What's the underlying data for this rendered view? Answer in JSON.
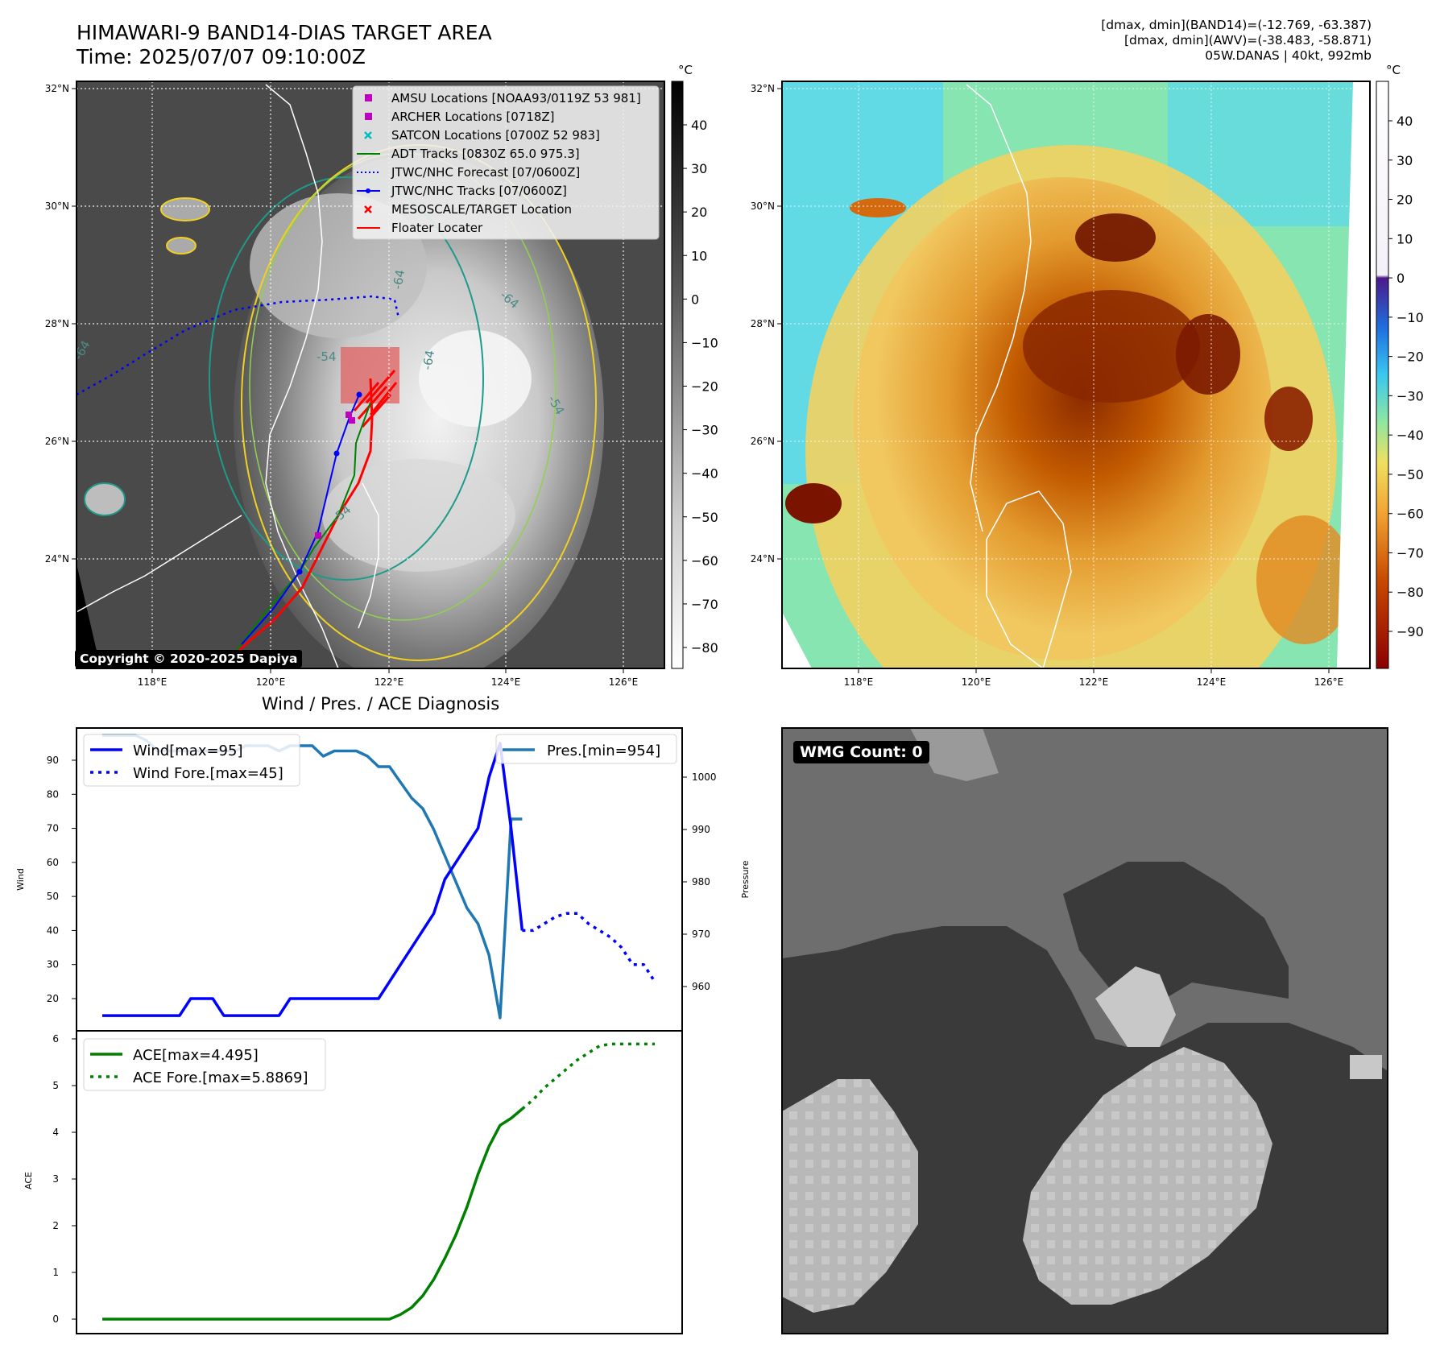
{
  "header": {
    "title_line1": "HIMAWARI-9 BAND14-DIAS TARGET AREA",
    "title_line2": "Time: 2025/07/07 09:10:00Z",
    "meta_line1": "[dmax, dmin](BAND14)=(-12.769, -63.387)",
    "meta_line2": "[dmax, dmin](AWV)=(-38.483, -58.871)",
    "meta_line3": "05W.DANAS | 40kt, 992mb"
  },
  "copyright": "Copyright © 2020-2025 Dapiya",
  "maps": {
    "lat_ticks": [
      "32°N",
      "30°N",
      "28°N",
      "26°N",
      "24°N"
    ],
    "lon_ticks": [
      "118°E",
      "120°E",
      "122°E",
      "124°E",
      "126°E"
    ],
    "contour_labels": [
      "-64",
      "-64",
      "-54",
      "-64",
      "-54",
      "-54",
      "-64"
    ],
    "legend": [
      {
        "label": "AMSU Locations [NOAA93/0119Z 53 981]",
        "marker": "square",
        "color": "#bf00bf"
      },
      {
        "label": "ARCHER Locations [0718Z]",
        "marker": "square",
        "color": "#bf00bf"
      },
      {
        "label": "SATCON Locations [0700Z 52 983]",
        "marker": "x",
        "color": "#00bfbf"
      },
      {
        "label": "ADT Tracks [0830Z 65.0 975.3]",
        "marker": "line",
        "color": "#008000"
      },
      {
        "label": "JTWC/NHC Forecast [07/0600Z]",
        "marker": "dotted",
        "color": "#0000ff"
      },
      {
        "label": "JTWC/NHC Tracks [07/0600Z]",
        "marker": "line-dot",
        "color": "#0000ff"
      },
      {
        "label": "MESOSCALE/TARGET Location",
        "marker": "x",
        "color": "#ff0000"
      },
      {
        "label": "Floater Locater",
        "marker": "line",
        "color": "#ff0000"
      }
    ],
    "colorbar_left": {
      "unit": "°C",
      "ticks": [
        "40",
        "30",
        "20",
        "10",
        "0",
        "−10",
        "−20",
        "−30",
        "−40",
        "−50",
        "−60",
        "−70",
        "−80"
      ]
    },
    "colorbar_right": {
      "unit": "°C",
      "ticks": [
        "40",
        "30",
        "20",
        "10",
        "0",
        "−10",
        "−20",
        "−30",
        "−40",
        "−50",
        "−60",
        "−70",
        "−80",
        "−90"
      ]
    }
  },
  "diagnosis": {
    "title": "Wind / Pres. / ACE Diagnosis",
    "wind_ylabel": "Wind",
    "pres_ylabel": "Pressure",
    "ace_ylabel": "ACE",
    "legend_wind": "Wind[max=95]",
    "legend_wind_fore": "Wind Fore.[max=45]",
    "legend_pres": "Pres.[min=954]",
    "legend_ace": "ACE[max=4.495]",
    "legend_ace_fore": "ACE Fore.[max=5.8869]",
    "wind_ticks": [
      "90",
      "80",
      "70",
      "60",
      "50",
      "40",
      "30",
      "20"
    ],
    "pres_ticks": [
      "1000",
      "990",
      "980",
      "970",
      "960"
    ],
    "ace_ticks": [
      "6",
      "5",
      "4",
      "3",
      "2",
      "1",
      "0"
    ]
  },
  "wmg": {
    "label": "WMG Count: 0"
  },
  "chart_data": [
    {
      "type": "line",
      "x": [
        0,
        1,
        2,
        3,
        4,
        5,
        6,
        7,
        8,
        9,
        10,
        11,
        12,
        13,
        14,
        15,
        16,
        17,
        18,
        19,
        20,
        21,
        22,
        23,
        24,
        25,
        26,
        27,
        28,
        29,
        30,
        31,
        32,
        33,
        34,
        35,
        36,
        37,
        38
      ],
      "series": [
        {
          "name": "Wind[max=95]",
          "values": [
            15,
            15,
            15,
            15,
            15,
            15,
            15,
            15,
            20,
            20,
            20,
            15,
            15,
            15,
            15,
            15,
            15,
            20,
            20,
            20,
            20,
            20,
            20,
            20,
            20,
            20,
            25,
            30,
            35,
            40,
            45,
            55,
            60,
            65,
            70,
            85,
            95,
            70,
            40
          ]
        },
        {
          "name": "Pres.[min=954]",
          "values": [
            1008,
            1008,
            1008,
            1008,
            1007,
            1005,
            1005,
            1005,
            1005,
            1005,
            1005,
            1005,
            1005,
            1006,
            1006,
            1006,
            1005,
            1006,
            1006,
            1006,
            1004,
            1005,
            1005,
            1005,
            1004,
            1002,
            1002,
            999,
            996,
            994,
            990,
            985,
            980,
            975,
            972,
            966,
            954,
            992,
            992
          ]
        }
      ],
      "ylabel": "Wind",
      "ylim": [
        12,
        98
      ]
    },
    {
      "type": "line",
      "x": [
        38,
        39,
        40,
        41,
        42,
        43,
        44,
        45,
        46,
        47,
        48,
        49,
        50
      ],
      "series": [
        {
          "name": "Wind Fore.[max=45]",
          "values": [
            40,
            40,
            42,
            44,
            45,
            45,
            42,
            40,
            38,
            35,
            30,
            30,
            25
          ]
        }
      ]
    },
    {
      "type": "line",
      "x": [
        0,
        1,
        2,
        3,
        4,
        5,
        6,
        7,
        8,
        9,
        10,
        11,
        12,
        13,
        14,
        15,
        16,
        17,
        18,
        19,
        20,
        21,
        22,
        23,
        24,
        25,
        26,
        27,
        28,
        29,
        30,
        31,
        32,
        33,
        34,
        35,
        36,
        37,
        38
      ],
      "series": [
        {
          "name": "ACE[max=4.495]",
          "values": [
            0,
            0,
            0,
            0,
            0,
            0,
            0,
            0,
            0,
            0,
            0,
            0,
            0,
            0,
            0,
            0,
            0,
            0,
            0,
            0,
            0,
            0,
            0,
            0,
            0,
            0,
            0,
            0.1,
            0.25,
            0.5,
            0.85,
            1.3,
            1.8,
            2.4,
            3.1,
            3.7,
            4.15,
            4.3,
            4.5
          ]
        }
      ],
      "ylabel": "ACE",
      "ylim": [
        0,
        6.3
      ]
    },
    {
      "type": "line",
      "x": [
        38,
        39,
        40,
        41,
        42,
        43,
        44,
        45,
        46,
        47,
        48,
        49,
        50
      ],
      "series": [
        {
          "name": "ACE Fore.[max=5.8869]",
          "values": [
            4.5,
            4.7,
            4.95,
            5.15,
            5.35,
            5.55,
            5.7,
            5.85,
            5.89,
            5.89,
            5.89,
            5.89,
            5.89
          ]
        }
      ]
    }
  ]
}
